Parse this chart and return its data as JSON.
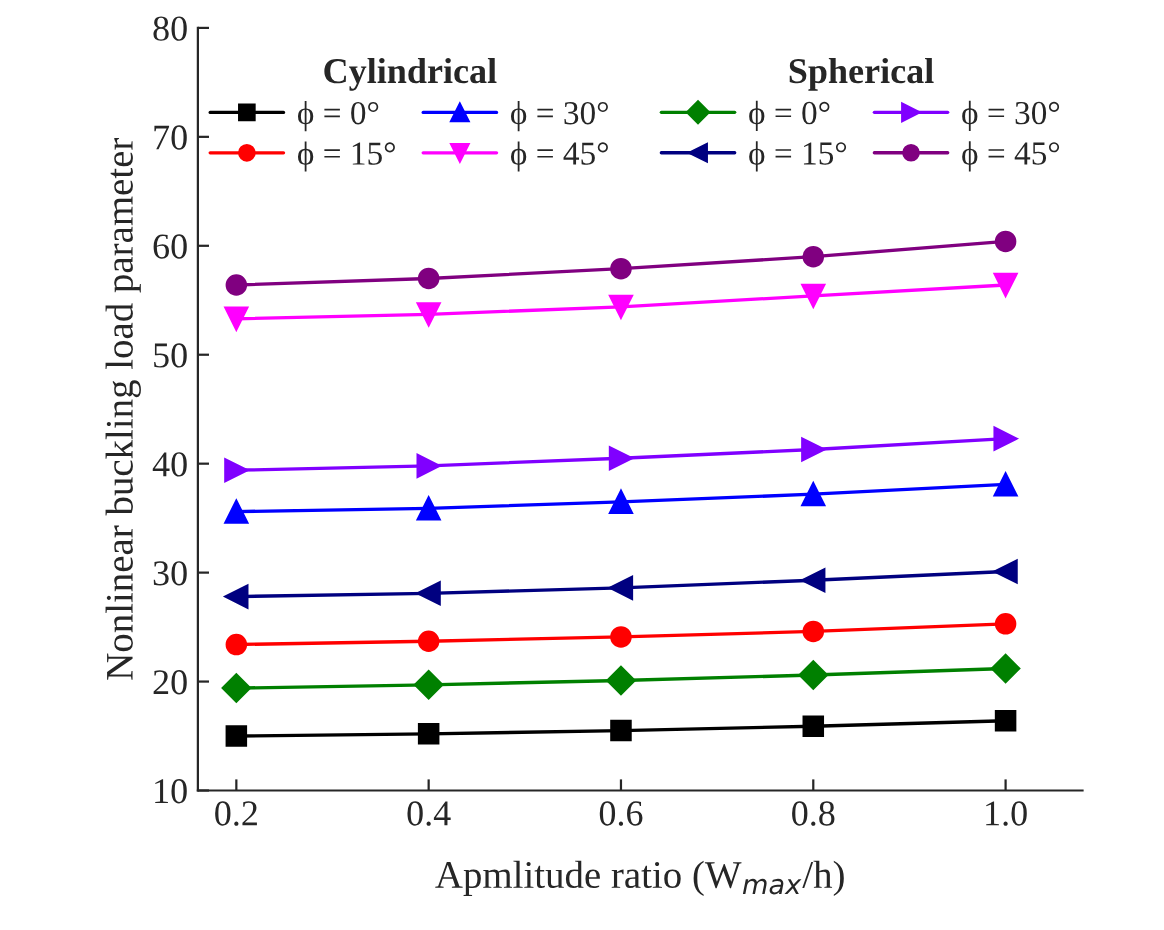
{
  "chart_data": {
    "type": "line",
    "xlabel": "Apmlitude ratio (W$_{max}$/h)",
    "ylabel": "Nonlinear buckling load parameter",
    "x": [
      0.2,
      0.4,
      0.6,
      0.8,
      1.0
    ],
    "xlim": [
      0.16,
      1.08
    ],
    "xticks": [
      {
        "value": 0.2,
        "label": "0.2"
      },
      {
        "value": 0.4,
        "label": "0.4"
      },
      {
        "value": 0.6,
        "label": "0.6"
      },
      {
        "value": 0.8,
        "label": "0.8"
      },
      {
        "value": 1.0,
        "label": "1.0"
      }
    ],
    "ylim": [
      10,
      80
    ],
    "yticks": [
      10,
      20,
      30,
      40,
      50,
      60,
      70,
      80
    ],
    "annotations": [
      "Cylindrical",
      "Spherical"
    ],
    "legend": "top",
    "grid": false,
    "line_style": "solid",
    "series": [
      {
        "name": "ϕ = 0°",
        "color": "#000000",
        "marker": "square",
        "values": [
          15.0,
          15.2,
          15.5,
          15.9,
          16.4
        ]
      },
      {
        "name": "ϕ = 15°",
        "color": "#ff0000",
        "marker": "circle",
        "values": [
          23.4,
          23.7,
          24.1,
          24.6,
          25.3
        ]
      },
      {
        "name": "ϕ = 30°",
        "color": "#0000ff",
        "marker": "triangle-up",
        "values": [
          35.6,
          35.9,
          36.5,
          37.2,
          38.1
        ]
      },
      {
        "name": "ϕ = 45°",
        "color": "#ff00ff",
        "marker": "triangle-down",
        "values": [
          53.3,
          53.7,
          54.4,
          55.4,
          56.4
        ]
      },
      {
        "name": "ϕ = 0°",
        "color": "#008000",
        "marker": "diamond",
        "values": [
          19.4,
          19.7,
          20.1,
          20.6,
          21.2
        ]
      },
      {
        "name": "ϕ = 15°",
        "color": "#000080",
        "marker": "triangle-left",
        "values": [
          27.8,
          28.1,
          28.6,
          29.3,
          30.1
        ]
      },
      {
        "name": "ϕ = 30°",
        "color": "#8000ff",
        "marker": "triangle-right",
        "values": [
          39.4,
          39.8,
          40.5,
          41.3,
          42.3
        ]
      },
      {
        "name": "ϕ = 45°",
        "color": "#800080",
        "marker": "circle",
        "values": [
          56.4,
          57.0,
          57.9,
          59.0,
          60.4
        ]
      }
    ]
  }
}
